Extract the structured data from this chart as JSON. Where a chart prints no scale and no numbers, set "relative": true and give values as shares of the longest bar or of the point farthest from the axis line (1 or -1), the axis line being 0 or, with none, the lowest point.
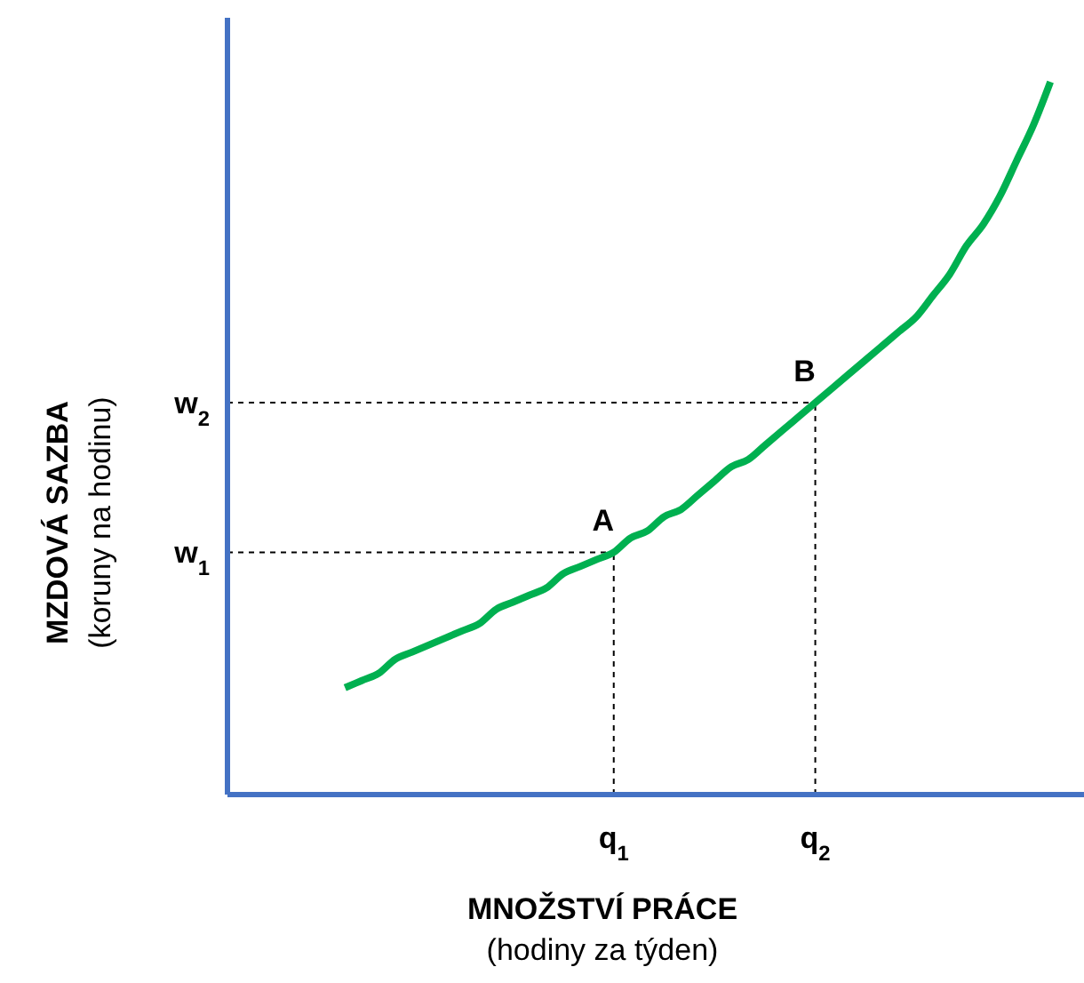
{
  "chart_data": {
    "type": "line",
    "xlabel": "MNOŽSTVÍ PRÁCE\n(hodiny za týden)",
    "ylabel": "MZDOVÁ SAZBA\n(koruny na hodinu)",
    "relative": true,
    "marker": "none",
    "categories": [
      null,
      null,
      null,
      null,
      null,
      null,
      null,
      null,
      null,
      null,
      null,
      null,
      null,
      null,
      null,
      null,
      null,
      null,
      null,
      null,
      null,
      null,
      null,
      "q$_{1}$",
      null,
      null,
      null,
      null,
      null,
      null,
      null,
      null,
      null,
      null,
      null,
      "q$_{2}$",
      null,
      null,
      null,
      null,
      null,
      null,
      null,
      null,
      null,
      null,
      null,
      null,
      null,
      null,
      null,
      null
    ],
    "series": [
      {
        "color": "#00b050",
        "line_style": "solid",
        "values": [
          null,
          null,
          null,
          null,
          null,
          null,
          null,
          0.15,
          0.16,
          0.17,
          0.19,
          0.2,
          0.21,
          0.22,
          0.23,
          0.24,
          0.26,
          0.27,
          0.28,
          0.29,
          0.31,
          0.32,
          0.33,
          0.34,
          0.36,
          0.37,
          0.39,
          0.4,
          0.42,
          0.44,
          0.46,
          0.47,
          0.49,
          0.51,
          0.53,
          0.55,
          0.57,
          0.59,
          0.61,
          0.63,
          0.65,
          0.67,
          0.7,
          0.73,
          0.77,
          0.8,
          0.84,
          0.89,
          0.94,
          1,
          null,
          null
        ]
      }
    ],
    "ref_lines": [
      {
        "axis": "y",
        "value": 0.34,
        "label": "w$_{1}$",
        "color": "#000000",
        "line_style": "dashed"
      },
      {
        "axis": "y",
        "value": 0.55,
        "label": "w$_{2}$",
        "color": "#000000",
        "line_style": "dashed"
      }
    ],
    "annotations": [
      {
        "text": "A",
        "x": "q$_{1}$",
        "y": 0.34
      },
      {
        "text": "B",
        "x": "q$_{2}$",
        "y": 0.55
      }
    ]
  }
}
